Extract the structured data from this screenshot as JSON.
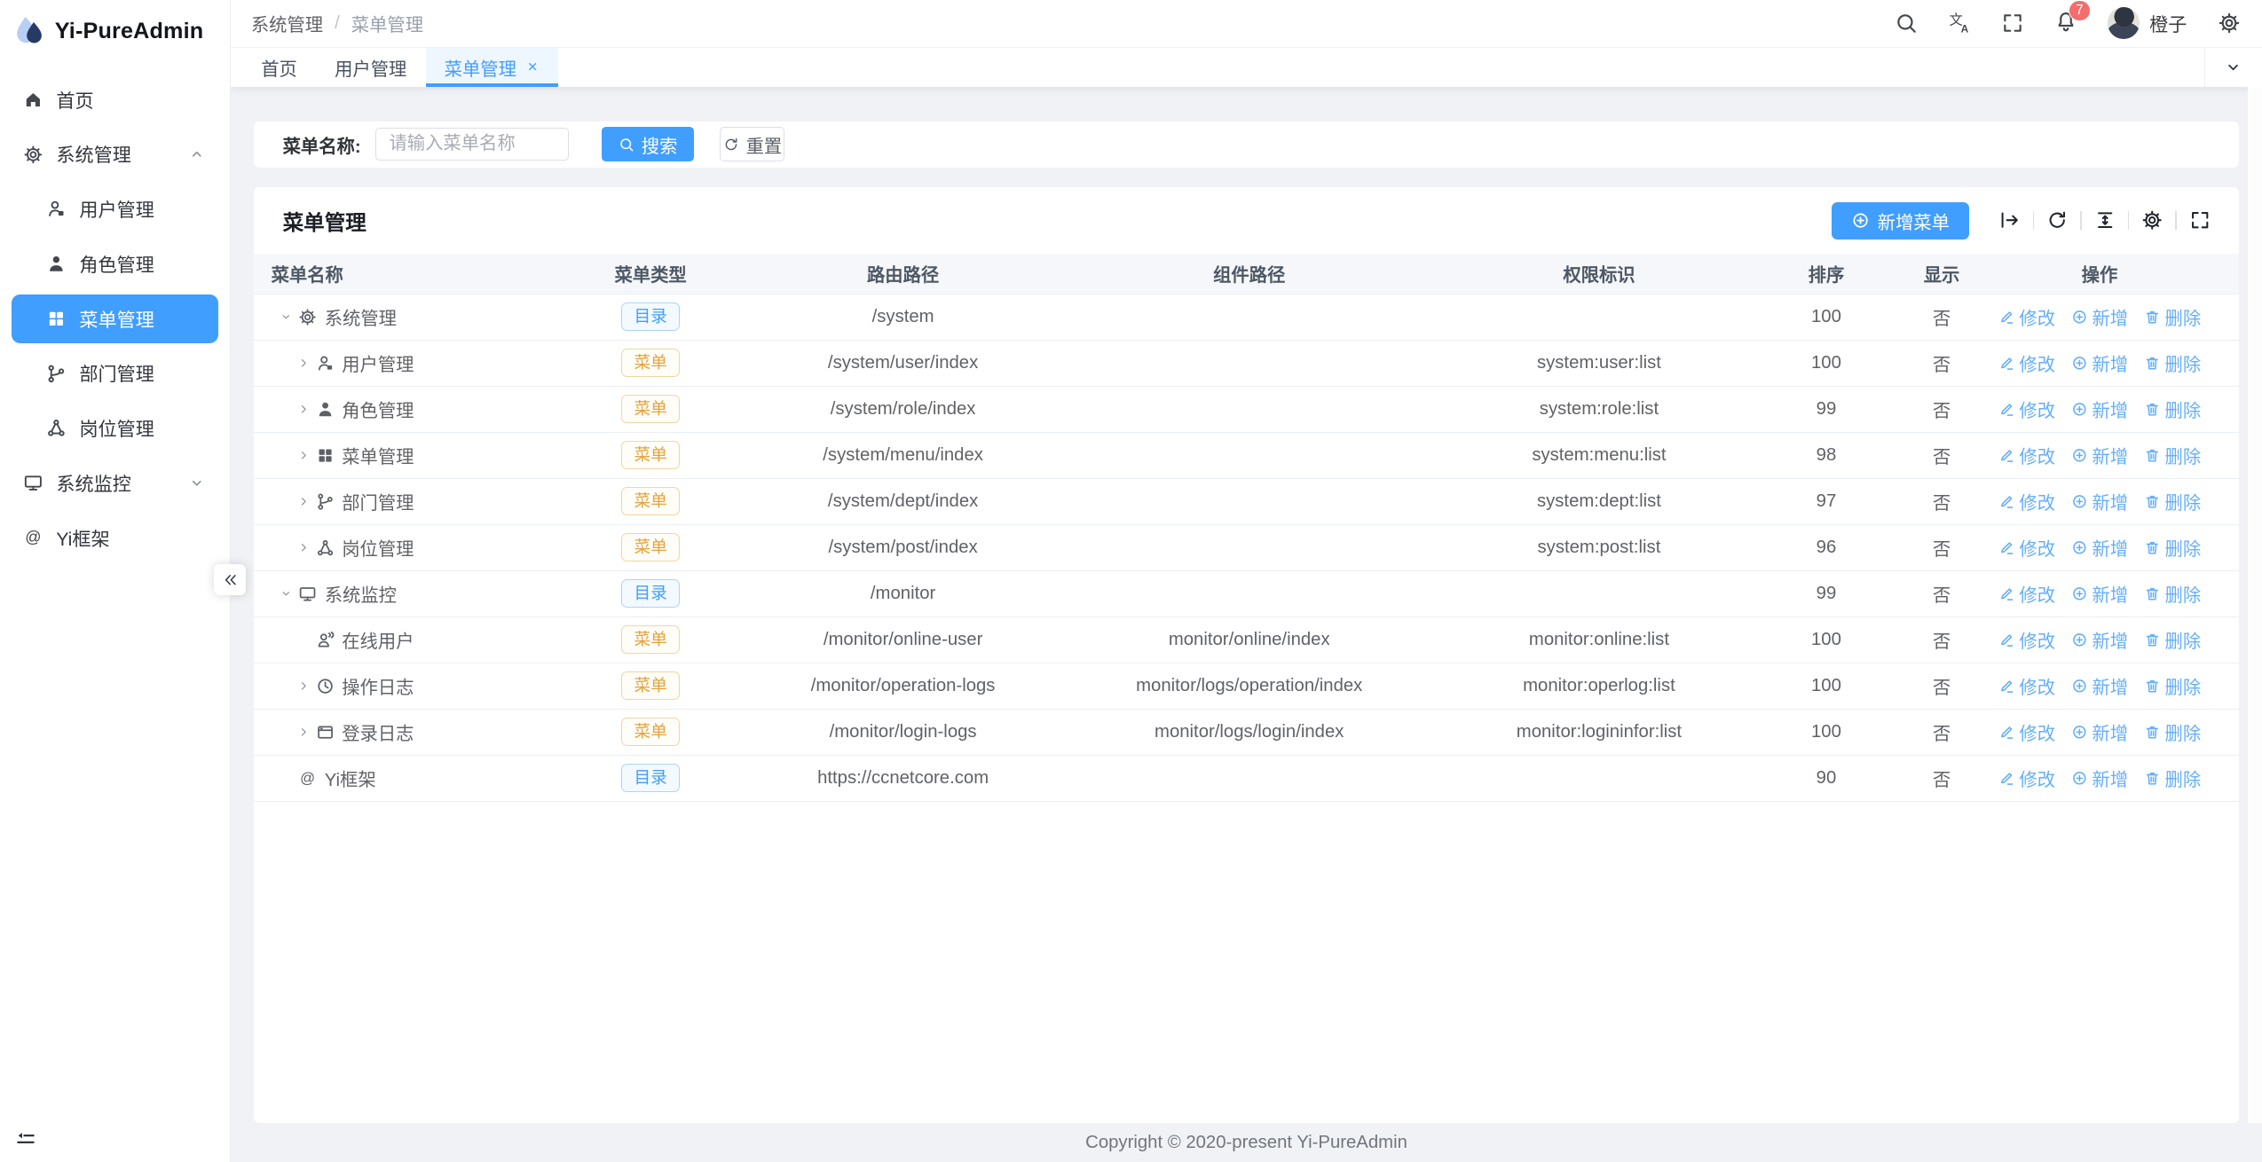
{
  "app": {
    "copyright": "Copyright © 2020-present Yi-PureAdmin"
  },
  "colors": {
    "primary": "#409eff",
    "warning": "#e6a23c",
    "danger": "#f56c6c",
    "action_link": "#64aefb"
  },
  "sidebar": {
    "logo_text": "Yi-PureAdmin",
    "logo_icon": "water-drop-logo-icon",
    "collapse_icon": "double-chevron-left-icon",
    "fold_icon": "indent-fold-icon",
    "items": [
      {
        "label": "首页",
        "icon": "home-icon",
        "level": 0
      },
      {
        "label": "系统管理",
        "icon": "gear-icon",
        "level": 0,
        "expand": "up"
      },
      {
        "label": "用户管理",
        "icon": "user-icon",
        "level": 1
      },
      {
        "label": "角色管理",
        "icon": "role-icon",
        "level": 1
      },
      {
        "label": "菜单管理",
        "icon": "menu-grid-icon",
        "level": 1,
        "active": true
      },
      {
        "label": "部门管理",
        "icon": "dept-tree-icon",
        "level": 1
      },
      {
        "label": "岗位管理",
        "icon": "post-node-icon",
        "level": 1
      },
      {
        "label": "系统监控",
        "icon": "monitor-icon",
        "level": 0,
        "expand": "down"
      },
      {
        "label": "Yi框架",
        "icon": "at-icon",
        "level": 0
      }
    ]
  },
  "navbar": {
    "breadcrumb": [
      "系统管理",
      "菜单管理"
    ],
    "icons": [
      "search-icon",
      "translate-icon",
      "fullscreen-icon",
      "bell-icon"
    ],
    "badge_count": "7",
    "username": "橙子",
    "settings_icon": "gear-icon"
  },
  "tabs": [
    {
      "label": "首页"
    },
    {
      "label": "用户管理"
    },
    {
      "label": "菜单管理",
      "active": true,
      "closable": true
    }
  ],
  "search": {
    "label": "菜单名称:",
    "placeholder": "请输入菜单名称",
    "value": "",
    "search_label": "搜索",
    "reset_label": "重置"
  },
  "card": {
    "title": "菜单管理",
    "add_button": "新增菜单",
    "toolbar_icons": [
      "bar-arrow-right-icon",
      "refresh-icon",
      "density-icon",
      "settings-gear-icon",
      "fullscreen-icon"
    ]
  },
  "table": {
    "columns": [
      "菜单名称",
      "菜单类型",
      "路由路径",
      "组件路径",
      "权限标识",
      "排序",
      "显示",
      "操作"
    ],
    "tag_types": {
      "dir": "目录",
      "menu": "菜单"
    },
    "actions": [
      {
        "label": "修改",
        "icon": "edit-icon"
      },
      {
        "label": "新增",
        "icon": "plus-circle-icon"
      },
      {
        "label": "删除",
        "icon": "trash-icon"
      }
    ],
    "rows": [
      {
        "name": "系统管理",
        "icon": "gear-icon",
        "level": 0,
        "arrow": "down",
        "type": "dir",
        "route": "/system",
        "component": "",
        "perm": "",
        "sort": "100",
        "visible": "否"
      },
      {
        "name": "用户管理",
        "icon": "user-icon",
        "level": 1,
        "arrow": "right",
        "type": "menu",
        "route": "/system/user/index",
        "component": "",
        "perm": "system:user:list",
        "sort": "100",
        "visible": "否"
      },
      {
        "name": "角色管理",
        "icon": "role-icon",
        "level": 1,
        "arrow": "right",
        "type": "menu",
        "route": "/system/role/index",
        "component": "",
        "perm": "system:role:list",
        "sort": "99",
        "visible": "否"
      },
      {
        "name": "菜单管理",
        "icon": "menu-grid-icon",
        "level": 1,
        "arrow": "right",
        "type": "menu",
        "route": "/system/menu/index",
        "component": "",
        "perm": "system:menu:list",
        "sort": "98",
        "visible": "否"
      },
      {
        "name": "部门管理",
        "icon": "dept-tree-icon",
        "level": 1,
        "arrow": "right",
        "type": "menu",
        "route": "/system/dept/index",
        "component": "",
        "perm": "system:dept:list",
        "sort": "97",
        "visible": "否"
      },
      {
        "name": "岗位管理",
        "icon": "post-node-icon",
        "level": 1,
        "arrow": "right",
        "type": "menu",
        "route": "/system/post/index",
        "component": "",
        "perm": "system:post:list",
        "sort": "96",
        "visible": "否"
      },
      {
        "name": "系统监控",
        "icon": "monitor-icon",
        "level": 0,
        "arrow": "down",
        "type": "dir",
        "route": "/monitor",
        "component": "",
        "perm": "",
        "sort": "99",
        "visible": "否"
      },
      {
        "name": "在线用户",
        "icon": "online-user-icon",
        "level": 1,
        "arrow": "none",
        "type": "menu",
        "route": "/monitor/online-user",
        "component": "monitor/online/index",
        "perm": "monitor:online:list",
        "sort": "100",
        "visible": "否"
      },
      {
        "name": "操作日志",
        "icon": "clock-icon",
        "level": 1,
        "arrow": "right",
        "type": "menu",
        "route": "/monitor/operation-logs",
        "component": "monitor/logs/operation/index",
        "perm": "monitor:operlog:list",
        "sort": "100",
        "visible": "否"
      },
      {
        "name": "登录日志",
        "icon": "login-log-icon",
        "level": 1,
        "arrow": "right",
        "type": "menu",
        "route": "/monitor/login-logs",
        "component": "monitor/logs/login/index",
        "perm": "monitor:logininfor:list",
        "sort": "100",
        "visible": "否"
      },
      {
        "name": "Yi框架",
        "icon": "at-icon",
        "level": 0,
        "arrow": "none",
        "type": "dir",
        "route": "https://ccnetcore.com",
        "component": "",
        "perm": "",
        "sort": "90",
        "visible": "否"
      }
    ]
  }
}
